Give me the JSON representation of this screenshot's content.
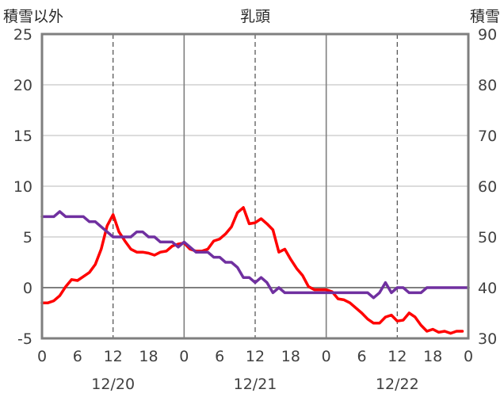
{
  "chart_data": {
    "type": "line",
    "title": "乳頭",
    "y_left_label": "積雪以外",
    "y_right_label": "積雪",
    "y_left_range": [
      -5,
      25
    ],
    "y_left_ticks": [
      25,
      20,
      15,
      10,
      5,
      0,
      -5
    ],
    "y_right_range": [
      30,
      90
    ],
    "y_right_ticks": [
      90,
      80,
      70,
      60,
      50,
      40,
      30
    ],
    "x_range_hours": [
      0,
      72
    ],
    "x_tick_labels": [
      "0",
      "6",
      "12",
      "18",
      "0",
      "6",
      "12",
      "18",
      "0",
      "6",
      "12",
      "18",
      "0"
    ],
    "date_labels": [
      {
        "label": "12/20",
        "at_hour": 12
      },
      {
        "label": "12/21",
        "at_hour": 36
      },
      {
        "label": "12/22",
        "at_hour": 60
      }
    ],
    "colors": {
      "series_red": "#ff0000",
      "series_purple": "#7030a0"
    },
    "series": [
      {
        "axis": "left",
        "color": "#ff0000",
        "x": [
          0,
          1,
          2,
          3,
          4,
          5,
          6,
          7,
          8,
          9,
          10,
          11,
          12,
          13,
          14,
          15,
          16,
          17,
          18,
          19,
          20,
          21,
          22,
          23,
          24,
          25,
          26,
          27,
          28,
          29,
          30,
          31,
          32,
          33,
          34,
          35,
          36,
          37,
          38,
          39,
          40,
          41,
          42,
          43,
          44,
          45,
          46,
          47,
          48,
          49,
          50,
          51,
          52,
          53,
          54,
          55,
          56,
          57,
          58,
          59,
          60,
          61,
          62,
          63,
          64,
          65,
          66,
          67,
          68,
          69,
          70,
          71
        ],
        "y": [
          -1.5,
          -1.5,
          -1.3,
          -0.8,
          0.1,
          0.8,
          0.7,
          1.1,
          1.5,
          2.3,
          3.8,
          6.1,
          7.2,
          5.5,
          4.6,
          3.8,
          3.5,
          3.5,
          3.4,
          3.2,
          3.5,
          3.6,
          4.1,
          4.3,
          4.4,
          3.8,
          3.6,
          3.6,
          3.8,
          4.6,
          4.8,
          5.3,
          6.0,
          7.4,
          7.9,
          6.3,
          6.4,
          6.8,
          6.3,
          5.7,
          3.5,
          3.8,
          2.8,
          1.9,
          1.2,
          0.1,
          -0.2,
          -0.2,
          -0.2,
          -0.4,
          -1.1,
          -1.2,
          -1.5,
          -2.0,
          -2.5,
          -3.1,
          -3.5,
          -3.5,
          -2.9,
          -2.7,
          -3.3,
          -3.2,
          -2.5,
          -2.9,
          -3.7,
          -4.3,
          -4.1,
          -4.4,
          -4.3,
          -4.5,
          -4.3,
          -4.3
        ]
      },
      {
        "axis": "right",
        "color": "#7030a0",
        "x": [
          0,
          1,
          2,
          3,
          4,
          5,
          6,
          7,
          8,
          9,
          10,
          11,
          12,
          13,
          14,
          15,
          16,
          17,
          18,
          19,
          20,
          21,
          22,
          23,
          24,
          25,
          26,
          27,
          28,
          29,
          30,
          31,
          32,
          33,
          34,
          35,
          36,
          37,
          38,
          39,
          40,
          41,
          42,
          43,
          44,
          45,
          46,
          47,
          48,
          49,
          50,
          51,
          52,
          53,
          54,
          55,
          56,
          57,
          58,
          59,
          60,
          61,
          62,
          63,
          64,
          65,
          66,
          67,
          68,
          69,
          70,
          71,
          72
        ],
        "y": [
          54,
          54,
          54,
          55,
          54,
          54,
          54,
          54,
          53,
          53,
          52,
          51,
          50,
          50,
          50,
          50,
          51,
          51,
          50,
          50,
          49,
          49,
          49,
          48,
          49,
          48,
          47,
          47,
          47,
          46,
          46,
          45,
          45,
          44,
          42,
          42,
          41,
          42,
          41,
          39,
          40,
          39,
          39,
          39,
          39,
          39,
          39,
          39,
          39,
          39,
          39,
          39,
          39,
          39,
          39,
          39,
          38,
          39,
          41,
          39,
          40,
          40,
          39,
          39,
          39,
          40,
          40,
          40,
          40,
          40,
          40,
          40,
          40
        ]
      }
    ]
  }
}
